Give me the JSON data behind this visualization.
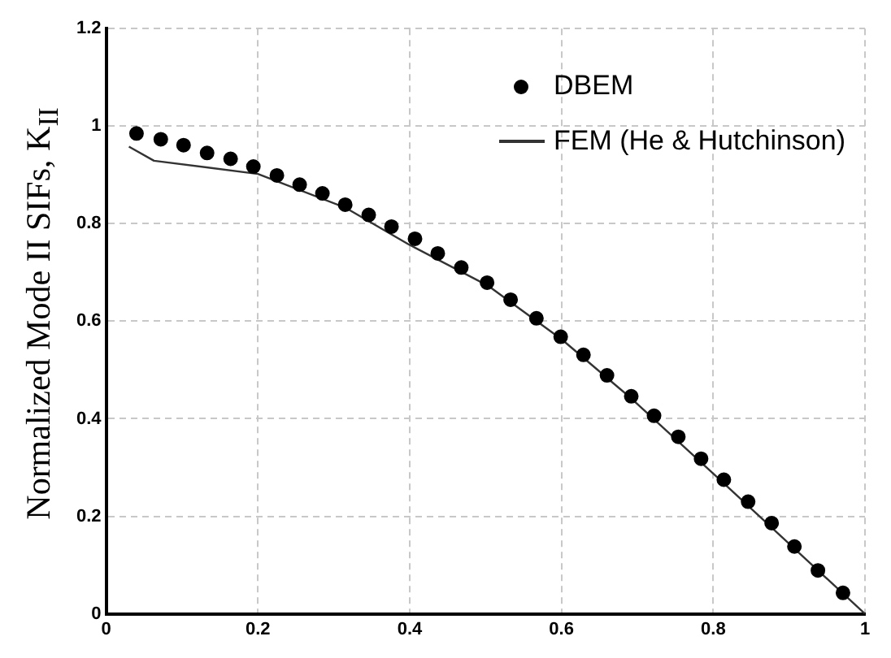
{
  "chart_data": {
    "type": "scatter",
    "ylabel": "Normalized Mode II SIFs, K$_{II}$",
    "xlim": [
      0,
      1
    ],
    "xticks": [
      0,
      0.2,
      0.4,
      0.6,
      0.8,
      1
    ],
    "ylim": [
      0,
      1.2
    ],
    "yticks": [
      0,
      0.2,
      0.4,
      0.6,
      0.8,
      1,
      1.2
    ],
    "grid": true,
    "legend": "top right",
    "series": [
      {
        "name": "DBEM",
        "marker": "circle",
        "color": "#000000",
        "x": [
          0.04,
          0.072,
          0.102,
          0.133,
          0.164,
          0.194,
          0.225,
          0.255,
          0.285,
          0.315,
          0.346,
          0.376,
          0.407,
          0.437,
          0.468,
          0.502,
          0.533,
          0.567,
          0.599,
          0.629,
          0.66,
          0.692,
          0.722,
          0.754,
          0.784,
          0.814,
          0.846,
          0.877,
          0.907,
          0.938,
          0.971
        ],
        "values": [
          0.985,
          0.973,
          0.961,
          0.945,
          0.933,
          0.917,
          0.899,
          0.88,
          0.862,
          0.839,
          0.818,
          0.794,
          0.769,
          0.739,
          0.71,
          0.679,
          0.644,
          0.606,
          0.568,
          0.531,
          0.489,
          0.446,
          0.406,
          0.363,
          0.318,
          0.275,
          0.23,
          0.186,
          0.138,
          0.089,
          0.043
        ]
      },
      {
        "name": "FEM (He & Hutchinson)",
        "type": "line",
        "marker": "none",
        "line_style": "solid",
        "color": "#333333",
        "x": [
          0.03,
          0.063,
          0.2,
          0.315,
          0.398,
          0.503,
          0.601,
          0.691,
          0.804,
          1
        ],
        "values": [
          0.958,
          0.929,
          0.902,
          0.833,
          0.758,
          0.673,
          0.562,
          0.443,
          0.282,
          0
        ]
      }
    ]
  }
}
